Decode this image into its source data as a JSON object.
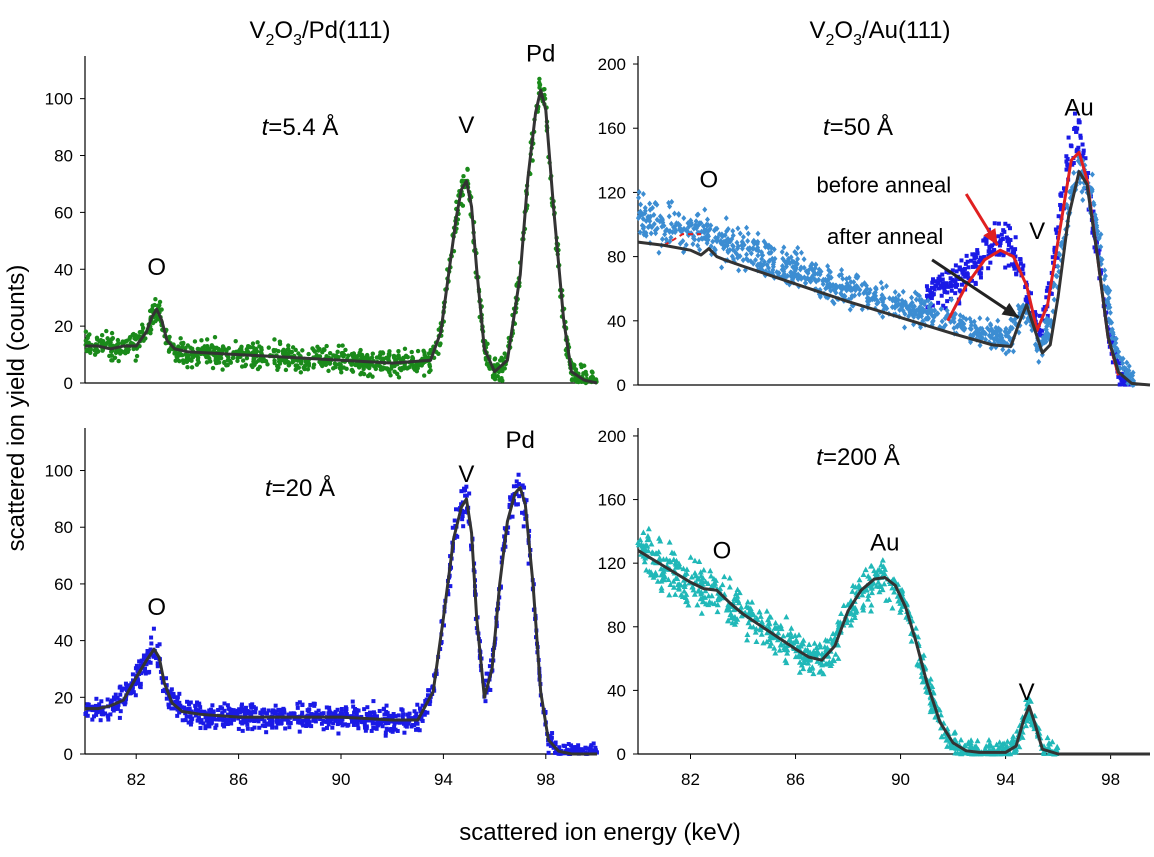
{
  "figure": {
    "shared_ylabel": "scattered ion yield (counts)",
    "shared_xlabel": "scattered ion energy (keV)",
    "column_titles": {
      "left": {
        "main": "V",
        "sub1": "2",
        "mid": "O",
        "sub2": "3",
        "rest": "/Pd(111)"
      },
      "right": {
        "main": "V",
        "sub1": "2",
        "mid": "O",
        "sub2": "3",
        "rest": "/Au(111)"
      }
    }
  },
  "chart_data": [
    {
      "id": "p1",
      "type": "scatter",
      "xlim": [
        80,
        100
      ],
      "ylim": [
        0,
        115
      ],
      "yticks": [
        0,
        20,
        40,
        60,
        80,
        100
      ],
      "xticks": [],
      "thickness": {
        "italic": "t",
        "rest": "=5.4 Å"
      },
      "annotations": [
        {
          "text": "O",
          "x": 82.8,
          "y": 38
        },
        {
          "text": "V",
          "x": 94.9,
          "y": 88
        },
        {
          "text": "Pd",
          "x": 97.8,
          "y": 113
        }
      ],
      "series": [
        {
          "kind": "points",
          "color": "#1a8a1a",
          "marker": "circle",
          "x": [
            80.0,
            80.5,
            81.0,
            81.5,
            82.0,
            82.4,
            82.6,
            82.8,
            83.0,
            83.2,
            83.5,
            84.0,
            86.0,
            88.0,
            90.0,
            92.0,
            93.5,
            93.9,
            94.2,
            94.5,
            94.7,
            94.9,
            95.1,
            95.3,
            95.6,
            96.0,
            96.5,
            97.0,
            97.3,
            97.6,
            97.8,
            98.0,
            98.3,
            98.7,
            99.0,
            99.5,
            100.0
          ],
          "y": [
            13,
            13,
            12,
            13,
            13,
            18,
            23,
            26,
            22,
            15,
            12,
            11,
            10,
            9,
            8,
            7,
            8,
            18,
            38,
            58,
            68,
            71,
            62,
            40,
            12,
            4,
            8,
            38,
            72,
            95,
            103,
            96,
            62,
            22,
            4,
            1,
            0
          ]
        },
        {
          "kind": "line",
          "color": "#333333",
          "x": [
            80.0,
            80.5,
            81.0,
            81.5,
            82.0,
            82.4,
            82.6,
            82.8,
            83.0,
            83.2,
            83.5,
            84.0,
            86.0,
            88.0,
            90.0,
            92.0,
            93.5,
            93.9,
            94.2,
            94.5,
            94.7,
            94.9,
            95.1,
            95.3,
            95.6,
            96.0,
            96.5,
            97.0,
            97.3,
            97.6,
            97.8,
            98.0,
            98.3,
            98.7,
            99.0,
            99.5,
            100.0
          ],
          "y": [
            13,
            13,
            12,
            13,
            13,
            18,
            23,
            26,
            22,
            15,
            12,
            11,
            10,
            9,
            8,
            7,
            8,
            18,
            38,
            58,
            68,
            71,
            62,
            40,
            12,
            4,
            8,
            38,
            72,
            95,
            103,
            96,
            62,
            22,
            4,
            1,
            0
          ]
        }
      ]
    },
    {
      "id": "p2",
      "type": "scatter",
      "xlim": [
        80,
        100
      ],
      "ylim": [
        0,
        115
      ],
      "yticks": [
        0,
        20,
        40,
        60,
        80,
        100
      ],
      "xticks": [
        82,
        86,
        90,
        94,
        98
      ],
      "thickness": {
        "italic": "t",
        "rest": "=20 Å"
      },
      "annotations": [
        {
          "text": "O",
          "x": 82.8,
          "y": 49
        },
        {
          "text": "V",
          "x": 94.9,
          "y": 96
        },
        {
          "text": "Pd",
          "x": 97.0,
          "y": 108
        }
      ],
      "series": [
        {
          "kind": "points",
          "color": "#1a1ae6",
          "marker": "square",
          "x": [
            80.0,
            80.5,
            81.0,
            81.5,
            82.0,
            82.4,
            82.7,
            82.9,
            83.1,
            83.4,
            83.8,
            84.5,
            86.0,
            88.0,
            90.0,
            92.0,
            93.0,
            93.6,
            94.0,
            94.4,
            94.7,
            94.9,
            95.1,
            95.3,
            95.6,
            95.9,
            96.2,
            96.5,
            96.8,
            97.0,
            97.2,
            97.5,
            97.8,
            98.1,
            98.5,
            99.0,
            100.0
          ],
          "y": [
            16,
            16,
            17,
            19,
            27,
            33,
            37,
            34,
            25,
            18,
            15,
            14,
            13,
            13,
            13,
            12,
            12,
            22,
            48,
            76,
            87,
            90,
            78,
            48,
            20,
            30,
            60,
            82,
            92,
            94,
            88,
            60,
            22,
            5,
            1,
            0,
            0
          ]
        },
        {
          "kind": "line",
          "color": "#333333",
          "x": [
            80.0,
            80.5,
            81.0,
            81.5,
            82.0,
            82.4,
            82.7,
            82.9,
            83.1,
            83.4,
            83.8,
            84.5,
            86.0,
            88.0,
            90.0,
            92.0,
            93.0,
            93.6,
            94.0,
            94.4,
            94.7,
            94.9,
            95.1,
            95.3,
            95.6,
            95.9,
            96.2,
            96.5,
            96.8,
            97.0,
            97.2,
            97.5,
            97.8,
            98.1,
            98.5,
            99.0,
            100.0
          ],
          "y": [
            16,
            16,
            17,
            19,
            27,
            33,
            37,
            34,
            25,
            18,
            15,
            14,
            13,
            13,
            13,
            12,
            12,
            22,
            48,
            76,
            87,
            90,
            78,
            48,
            20,
            30,
            60,
            82,
            92,
            94,
            88,
            60,
            22,
            5,
            1,
            0,
            0
          ]
        }
      ]
    },
    {
      "id": "p3",
      "type": "scatter",
      "xlim": [
        80,
        99.5
      ],
      "ylim": [
        0,
        205
      ],
      "yticks": [
        0,
        40,
        80,
        120,
        160,
        200
      ],
      "xticks": [],
      "thickness": {
        "italic": "t",
        "rest": "=50 Å"
      },
      "annotations": [
        {
          "text": "O",
          "x": 82.7,
          "y": 123
        },
        {
          "text": "V",
          "x": 95.2,
          "y": 91
        },
        {
          "text": "Au",
          "x": 96.8,
          "y": 168
        }
      ],
      "callouts": [
        {
          "text": "before anneal",
          "text_x": 86.8,
          "text_y": 120,
          "color": "#e02020",
          "arrow_from_x": 92.5,
          "arrow_from_y": 119,
          "arrow_to_x": 93.7,
          "arrow_to_y": 87
        },
        {
          "text": "after anneal",
          "text_x": 87.2,
          "text_y": 88,
          "color": "#222222",
          "arrow_from_x": 91.2,
          "arrow_from_y": 78,
          "arrow_to_x": 94.5,
          "arrow_to_y": 42
        }
      ],
      "series": [
        {
          "kind": "points",
          "name": "before anneal",
          "color": "#1a1ae6",
          "marker": "square",
          "x": [
            91.0,
            91.6,
            92.2,
            92.8,
            93.3,
            93.8,
            94.2,
            94.6,
            95.0,
            95.3,
            95.7,
            96.1,
            96.5,
            96.8,
            97.1,
            97.5,
            97.9,
            98.3,
            98.7
          ],
          "y": [
            55,
            60,
            65,
            75,
            85,
            88,
            84,
            72,
            45,
            35,
            60,
            110,
            148,
            150,
            130,
            85,
            35,
            8,
            1
          ]
        },
        {
          "kind": "points",
          "name": "after anneal",
          "color": "#3c8dd2",
          "marker": "diamond",
          "x": [
            80.0,
            81.0,
            82.0,
            82.6,
            83.0,
            84.0,
            86.0,
            88.0,
            90.0,
            92.0,
            93.0,
            94.0,
            94.4,
            94.7,
            95.0,
            95.3,
            95.7,
            96.1,
            96.5,
            96.9,
            97.3,
            97.7,
            98.1,
            98.5,
            98.9
          ],
          "y": [
            105,
            100,
            95,
            96,
            90,
            84,
            72,
            60,
            50,
            40,
            33,
            28,
            35,
            48,
            40,
            22,
            40,
            85,
            120,
            133,
            118,
            75,
            30,
            8,
            1
          ]
        },
        {
          "kind": "line",
          "name": "before anneal",
          "color": "#e02020",
          "x": [
            81.0,
            81.7,
            82.4,
            91.8,
            92.5,
            93.2,
            93.8,
            94.3,
            94.8,
            95.2,
            95.6,
            96.1,
            96.5,
            96.8,
            97.1,
            97.5,
            97.9,
            98.3
          ],
          "y": [
            87,
            94,
            94,
            40,
            62,
            78,
            84,
            80,
            62,
            34,
            50,
            100,
            140,
            145,
            128,
            80,
            30,
            6
          ]
        },
        {
          "kind": "line",
          "name": "after anneal",
          "color": "#333333",
          "x": [
            80.0,
            81.0,
            82.0,
            82.4,
            82.7,
            83.0,
            83.3,
            84.0,
            86.0,
            88.0,
            90.0,
            92.0,
            93.5,
            94.2,
            94.5,
            94.8,
            95.1,
            95.4,
            95.7,
            96.0,
            96.4,
            96.8,
            97.1,
            97.5,
            97.9,
            98.3,
            98.8,
            99.5
          ],
          "y": [
            89,
            87,
            84,
            81,
            85,
            80,
            78,
            74,
            63,
            52,
            42,
            32,
            25,
            24,
            38,
            50,
            35,
            20,
            25,
            55,
            105,
            133,
            125,
            80,
            30,
            8,
            1,
            0
          ]
        }
      ]
    },
    {
      "id": "p4",
      "type": "scatter",
      "xlim": [
        80,
        99.5
      ],
      "ylim": [
        0,
        205
      ],
      "yticks": [
        0,
        40,
        80,
        120,
        160,
        200
      ],
      "xticks": [
        82,
        86,
        90,
        94,
        98
      ],
      "thickness": {
        "italic": "t",
        "rest": "=200 Å"
      },
      "annotations": [
        {
          "text": "O",
          "x": 83.2,
          "y": 123
        },
        {
          "text": "Au",
          "x": 89.4,
          "y": 128
        },
        {
          "text": "V",
          "x": 94.8,
          "y": 34
        }
      ],
      "series": [
        {
          "kind": "points",
          "color": "#20b8b8",
          "marker": "triangle",
          "x": [
            80.0,
            81.0,
            82.0,
            82.5,
            83.0,
            83.5,
            84.0,
            85.0,
            86.0,
            86.5,
            87.0,
            87.5,
            88.0,
            88.5,
            89.0,
            89.4,
            89.8,
            90.2,
            90.6,
            91.0,
            91.5,
            92.0,
            92.5,
            93.0,
            94.0,
            94.4,
            94.7,
            94.9,
            95.1,
            95.4,
            96.0
          ],
          "y": [
            128,
            118,
            108,
            104,
            103,
            95,
            88,
            77,
            66,
            61,
            59,
            68,
            90,
            103,
            110,
            111,
            106,
            92,
            70,
            45,
            20,
            7,
            2,
            1,
            1,
            5,
            22,
            30,
            20,
            3,
            0
          ]
        },
        {
          "kind": "line",
          "color": "#333333",
          "x": [
            80.0,
            81.0,
            82.0,
            82.5,
            83.0,
            83.5,
            84.0,
            85.0,
            86.0,
            86.5,
            87.0,
            87.5,
            88.0,
            88.5,
            89.0,
            89.4,
            89.8,
            90.2,
            90.6,
            91.0,
            91.5,
            92.0,
            92.5,
            93.0,
            94.0,
            94.4,
            94.7,
            94.9,
            95.1,
            95.4,
            96.0,
            97.0,
            99.5
          ],
          "y": [
            128,
            118,
            108,
            104,
            103,
            95,
            88,
            77,
            66,
            61,
            59,
            68,
            90,
            103,
            110,
            111,
            106,
            92,
            70,
            45,
            20,
            7,
            2,
            1,
            1,
            5,
            22,
            30,
            20,
            3,
            0,
            0,
            0
          ]
        }
      ]
    }
  ]
}
